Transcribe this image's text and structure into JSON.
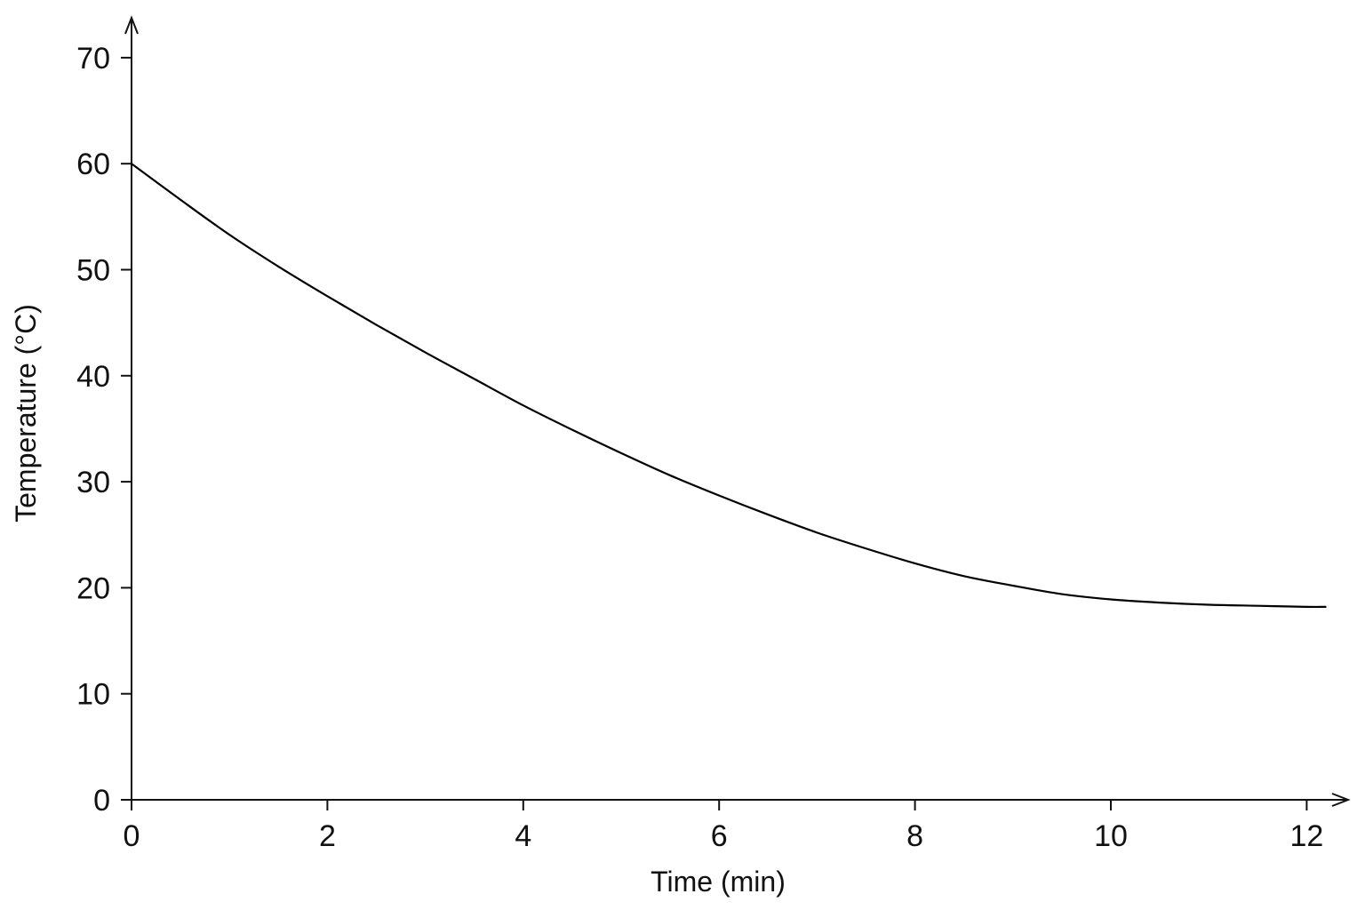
{
  "chart_data": {
    "type": "line",
    "title": "",
    "xlabel": "Time (min)",
    "ylabel": "Temperature (°C)",
    "xlim": [
      0,
      12.2
    ],
    "ylim": [
      0,
      70
    ],
    "x_ticks": [
      0,
      2,
      4,
      6,
      8,
      10,
      12
    ],
    "y_ticks": [
      0,
      10,
      20,
      30,
      40,
      50,
      60,
      70
    ],
    "x_tick_labels": [
      "0",
      "2",
      "4",
      "6",
      "8",
      "10",
      "12"
    ],
    "y_tick_labels": [
      "0",
      "10",
      "20",
      "30",
      "40",
      "50",
      "60",
      "70"
    ],
    "grid": false,
    "legend": "none",
    "series": [
      {
        "x": [
          0,
          0.5,
          1,
          1.5,
          2,
          2.5,
          3,
          3.5,
          4,
          4.5,
          5,
          5.5,
          6,
          6.5,
          7,
          7.5,
          8,
          8.5,
          9,
          9.5,
          10,
          10.5,
          11,
          11.5,
          12,
          12.2
        ],
        "y": [
          60,
          56.6,
          53.3,
          50.3,
          47.5,
          44.8,
          42.2,
          39.7,
          37.2,
          34.9,
          32.7,
          30.6,
          28.7,
          26.9,
          25.2,
          23.7,
          22.3,
          21.1,
          20.2,
          19.4,
          18.9,
          18.6,
          18.4,
          18.3,
          18.2,
          18.2
        ],
        "color": "#000000"
      }
    ]
  }
}
